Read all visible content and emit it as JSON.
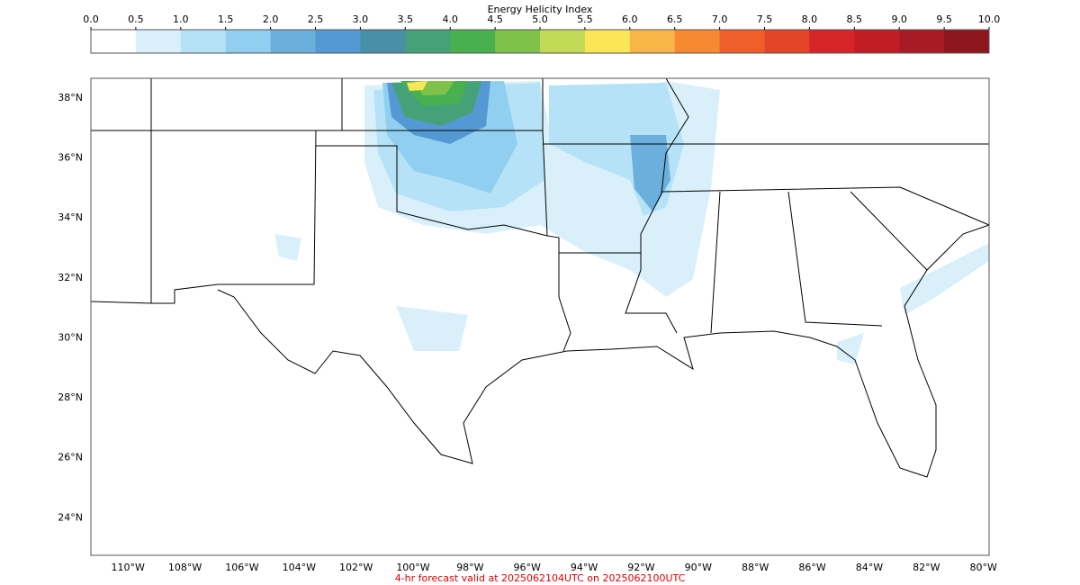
{
  "colorbar": {
    "label": "Energy Helicity Index",
    "lim": [
      0,
      10
    ],
    "ticks": [
      {
        "value": 0,
        "label": "0.0"
      },
      0.5,
      {
        "value": 1,
        "label": "1.0"
      },
      1.5,
      {
        "value": 2,
        "label": "2.0"
      },
      2.5,
      {
        "value": 3,
        "label": "3.0"
      },
      3.5,
      {
        "value": 4,
        "label": "4.0"
      },
      4.5,
      {
        "value": 5,
        "label": "5.0"
      },
      5.5,
      {
        "value": 6,
        "label": "6.0"
      },
      6.5,
      {
        "value": 7,
        "label": "7.0"
      },
      7.5,
      {
        "value": 8,
        "label": "8.0"
      },
      8.5,
      {
        "value": 9,
        "label": "9.0"
      },
      9.5,
      {
        "value": 10,
        "label": "10.0"
      }
    ],
    "colors": [
      "#ffffff",
      "#d9f0fb",
      "#b5e2f6",
      "#90cff0",
      "#6bb0dd",
      "#5599d4",
      "#4790a8",
      "#45a278",
      "#49b04f",
      "#7fc24a",
      "#c1d957",
      "#fbe658",
      "#f9b648",
      "#f68a33",
      "#f05f2a",
      "#e44528",
      "#d62527",
      "#c11d25",
      "#a91b24",
      "#8e171e"
    ]
  },
  "map": {
    "xlim": [
      -111.3,
      -79.8
    ],
    "ylim": [
      22.75,
      38.66
    ],
    "xticks": [
      {
        "value": -110,
        "label": "110°W"
      },
      {
        "value": -108,
        "label": "108°W"
      },
      {
        "value": -106,
        "label": "106°W"
      },
      {
        "value": -104,
        "label": "104°W"
      },
      {
        "value": -102,
        "label": "102°W"
      },
      {
        "value": -100,
        "label": "100°W"
      },
      {
        "value": -98,
        "label": "98°W"
      },
      {
        "value": -96,
        "label": "96°W"
      },
      {
        "value": -94,
        "label": "94°W"
      },
      {
        "value": -92,
        "label": "92°W"
      },
      {
        "value": -90,
        "label": "90°W"
      },
      {
        "value": -88,
        "label": "88°W"
      },
      {
        "value": -86,
        "label": "86°W"
      },
      {
        "value": -84,
        "label": "84°W"
      },
      {
        "value": -82,
        "label": "82°W"
      },
      {
        "value": -80,
        "label": "80°W"
      }
    ],
    "yticks": [
      {
        "value": 24,
        "label": "24°N"
      },
      {
        "value": 26,
        "label": "26°N"
      },
      {
        "value": 28,
        "label": "28°N"
      },
      {
        "value": 30,
        "label": "30°N"
      },
      {
        "value": 32,
        "label": "32°N"
      },
      {
        "value": 34,
        "label": "34°N"
      },
      {
        "value": 36,
        "label": "36°N"
      },
      {
        "value": 38,
        "label": "38°N"
      }
    ]
  },
  "footer": "4-hr forecast valid at 2025062104UTC on 2025062100UTC"
}
